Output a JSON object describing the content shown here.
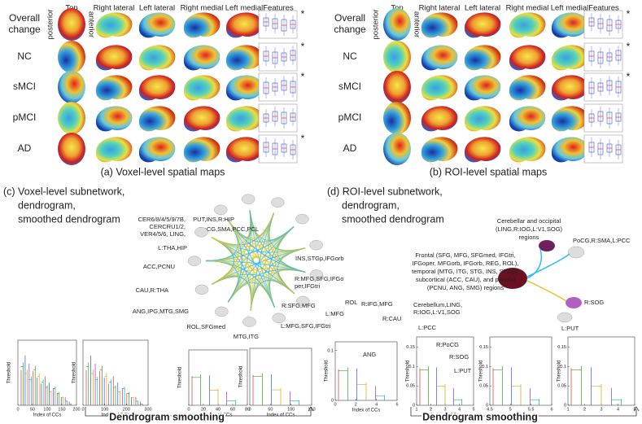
{
  "panel_a": {
    "columns": [
      "Top",
      "Right lateral",
      "Left lateral",
      "Right medial",
      "Left medial",
      "Features"
    ],
    "orientation": [
      "posterior",
      "anterior"
    ],
    "rows": [
      {
        "label": "Overall change",
        "star": "*"
      },
      {
        "label": "NC",
        "star": "*"
      },
      {
        "label": "sMCI",
        "star": "*"
      },
      {
        "label": "pMCI"
      },
      {
        "label": "AD",
        "star": "*"
      }
    ],
    "caption": "(a) Voxel-level spatial maps"
  },
  "panel_b": {
    "columns": [
      "Top",
      "Right lateral",
      "Left lateral",
      "Right medial",
      "Left medial",
      "Features"
    ],
    "orientation": [
      "posterior",
      "anterior"
    ],
    "rows": [
      {
        "label": "Overall change",
        "star": "*"
      },
      {
        "label": "NC",
        "star": "*"
      },
      {
        "label": "sMCI",
        "star": "*"
      },
      {
        "label": "pMCI"
      },
      {
        "label": "AD"
      }
    ],
    "caption": "(b) ROI-level spatial maps"
  },
  "panel_c": {
    "title": [
      "(c) Voxel-level subnetwork,",
      "dendrogram,",
      "smoothed dendrogram"
    ],
    "nodes": [
      [
        "PUT,INS,R:HIP"
      ],
      [
        "PoCG,SMA,PCC,PCL"
      ],
      [
        "L:THA,HIP"
      ],
      [
        "CER6/8/4/5/9/7B,",
        "CERCRU1/2,",
        "VER4/5/6, LING,"
      ],
      [
        "ACC,PCNU"
      ],
      [
        "CAU,R:THA"
      ],
      [
        "ANG,IPG,MTG,SMG"
      ],
      [
        "ROL,SFGmed"
      ],
      [
        "MTG,ITG"
      ],
      [
        "L:MFG,SFG,IFGtri"
      ],
      [
        "R:SFG,MFG"
      ],
      [
        "R:MFG,SFG,IFGo",
        "per,IFGtri"
      ],
      [
        "INS,STGp,IFGorb"
      ]
    ],
    "plots": [
      {
        "ylabel": "Threshold",
        "xlabel": "Index of CCs",
        "xticks": [
          0,
          50,
          100,
          150,
          200
        ]
      },
      {
        "ylabel": "Threshold",
        "xlabel": "Index of CCs",
        "xticks": [
          0,
          100,
          200,
          300
        ]
      },
      {
        "ylabel": "Threshold",
        "xlabel": "Index of CCs",
        "xticks": [
          0,
          20,
          40,
          60,
          80
        ]
      },
      {
        "ylabel": "Threshold",
        "xlabel": "Index of CCs",
        "xticks": [
          0,
          50,
          100,
          150
        ]
      }
    ],
    "smoothing": "Dendrogram smoothing"
  },
  "panel_d": {
    "title": [
      "(d) ROI-level subnetwork,",
      "dendrogram,",
      "smoothed dendrogram"
    ],
    "nodes": [
      [
        "Cerebellar and occipital",
        "(LING,R:IOG,L:V1,SOG)",
        "regions"
      ],
      [
        "PoCG,R:SMA,L:PCC"
      ],
      [
        "Frontal (SFG, MFG, SFGmed, IFGtri,",
        "IFGoper, MFGorb, IFGorb, REG, ROL),",
        "temporal (MTG, ITG, STG, INS, STGp),",
        "subcortical (ACC, CAU), and parietal",
        "(PCNU, ANG, SMG) regions"
      ],
      [
        "R:SOG"
      ],
      [
        "L:PUT"
      ]
    ],
    "dendro_labels": [
      "L:MFG",
      "ROL",
      "R:IFG,MFG",
      "R:CAU",
      "ANG",
      "Cerebellum,LING,",
      "R:IOG,L:V1,SOG",
      "L:PCC",
      "R:PoCG",
      "R:SOG",
      "L:PUT"
    ],
    "plots": [
      {
        "ylabel": "Threshold",
        "xlabel": "Index of CCs",
        "xticks": [
          0,
          2,
          4,
          6
        ],
        "yticks": [
          0,
          0.1
        ]
      },
      {
        "ylabel": "Threshold",
        "xlabel": "Index of CCs",
        "xticks": [
          1,
          2,
          3,
          4,
          5
        ],
        "yticks": [
          0,
          0.05,
          0.1,
          0.15
        ]
      },
      {
        "ylabel": "Threshold",
        "xticks": [
          4.5,
          5,
          5.5,
          6
        ],
        "yticks": [
          0,
          0.05,
          0.1,
          0.15
        ]
      },
      {
        "ylabel": "Threshold",
        "xticks": [
          1,
          2,
          3,
          4,
          5
        ],
        "yticks": [
          0,
          0.05,
          0.1,
          0.15
        ]
      }
    ],
    "smoothing": "Dendrogram smoothing"
  }
}
